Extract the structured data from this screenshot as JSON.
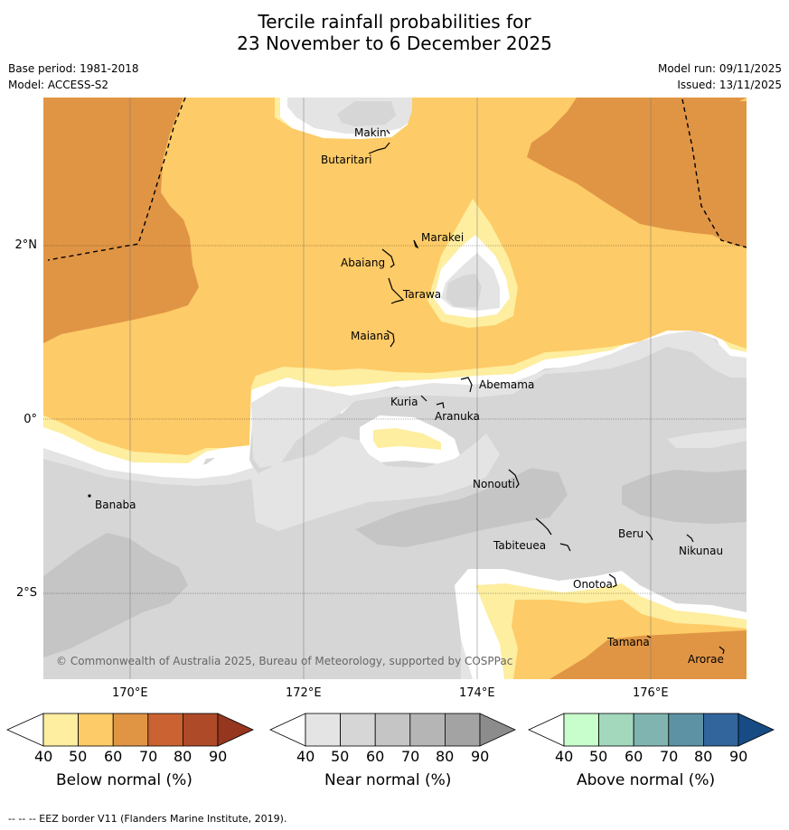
{
  "title": {
    "line1": "Tercile rainfall probabilities for",
    "line2": "23 November to 6 December 2025"
  },
  "meta": {
    "base_period": "Base period: 1981-2018",
    "model": "Model: ACCESS-S2",
    "model_run": "Model run: 09/11/2025",
    "issued": "Issued: 13/11/2025"
  },
  "axes": {
    "lat_labels": [
      "2°N",
      "0°",
      "2°S"
    ],
    "lon_labels": [
      "170°E",
      "172°E",
      "174°E",
      "176°E"
    ]
  },
  "places": [
    "Makin",
    "Butaritari",
    "Marakei",
    "Abaiang",
    "Tarawa",
    "Maiana",
    "Abemama",
    "Kuria",
    "Aranuka",
    "Banaba",
    "Nonouti",
    "Beru",
    "Tabiteuea",
    "Nikunau",
    "Onotoa",
    "Tamana",
    "Arorae"
  ],
  "copyright": "© Commonwealth of Australia 2025, Bureau of Meteorology, supported by COSPPac",
  "colorbars": {
    "ticks": [
      "40",
      "50",
      "60",
      "70",
      "80",
      "90"
    ],
    "below": {
      "label": "Below normal (%)",
      "colors": [
        "#fdeea0",
        "#fdcb67",
        "#e09545",
        "#ca6331",
        "#ae4a27",
        "#96361e"
      ]
    },
    "near": {
      "label": "Near normal (%)",
      "colors": [
        "#e4e4e4",
        "#d6d6d6",
        "#c5c5c5",
        "#b5b5b5",
        "#a3a3a3",
        "#8c8c8c"
      ]
    },
    "above": {
      "label": "Above normal (%)",
      "colors": [
        "#c8fdcc",
        "#a3d8bd",
        "#80b4b0",
        "#5c92a4",
        "#31659c",
        "#174b84"
      ]
    }
  },
  "footer": "--  --  -- EEZ border V11 (Flanders Marine Institute, 2019)."
}
